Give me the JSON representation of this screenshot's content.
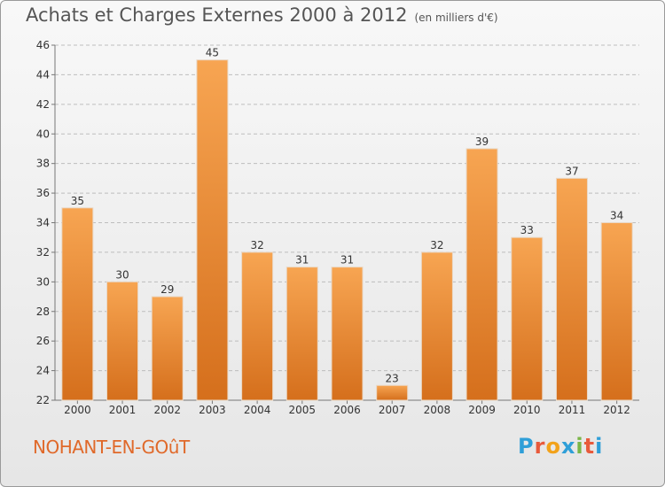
{
  "header": {
    "title": "Achats et Charges Externes 2000 à 2012",
    "subtitle": "(en milliers d'€)"
  },
  "footer": {
    "commune": "NOHANT-EN-GOûT",
    "logo_text": "Proxiti",
    "logo_colors": [
      "#2f9fd8",
      "#e85a3b",
      "#f2a21a",
      "#2f9fd8",
      "#7ab648",
      "#e85a3b",
      "#2f9fd8"
    ]
  },
  "colors": {
    "bar_light": "#f7a552",
    "bar_dark": "#d56f1c",
    "grid": "#bdbdbd"
  },
  "chart_data": {
    "type": "bar",
    "title": "Achats et Charges Externes 2000 à 2012",
    "subtitle": "(en milliers d'€)",
    "xlabel": "",
    "ylabel": "",
    "categories": [
      "2000",
      "2001",
      "2002",
      "2003",
      "2004",
      "2005",
      "2006",
      "2007",
      "2008",
      "2009",
      "2010",
      "2011",
      "2012"
    ],
    "values": [
      35,
      30,
      29,
      45,
      32,
      31,
      31,
      23,
      32,
      39,
      33,
      37,
      34
    ],
    "ylim": [
      22,
      46
    ],
    "yticks": [
      22,
      24,
      26,
      28,
      30,
      32,
      34,
      36,
      38,
      40,
      42,
      44,
      46
    ],
    "grid": true,
    "legend": "none"
  }
}
